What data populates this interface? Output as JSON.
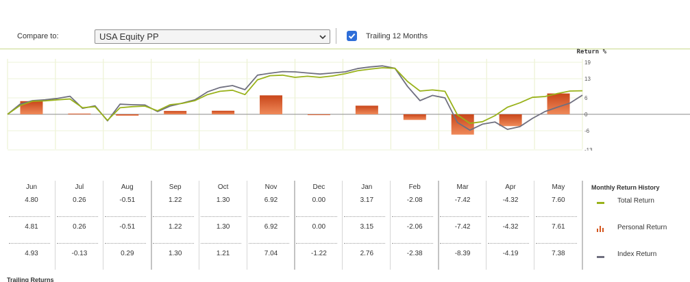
{
  "toolbar": {
    "compare_label": "Compare to:",
    "compare_value": "USA Equity PP",
    "trailing_label": "Trailing 12 Months",
    "trailing_checked": true
  },
  "chart_data": {
    "type": "line",
    "y_axis_title": "Return %",
    "yticks": [
      19,
      13,
      6,
      0,
      -6,
      -13
    ],
    "ylim": [
      -13,
      19
    ],
    "months": [
      "Jun",
      "Jul",
      "Aug",
      "Sep",
      "Oct",
      "Nov",
      "Dec",
      "Jan",
      "Feb",
      "Mar",
      "Apr",
      "May"
    ],
    "bars": {
      "name": "Personal Return",
      "color": "#d4561e",
      "values": [
        4.81,
        0.26,
        -0.51,
        1.22,
        1.3,
        6.92,
        0.0,
        3.15,
        -2.06,
        -7.42,
        -4.32,
        7.61
      ]
    },
    "series": [
      {
        "name": "Total Return",
        "color": "#99b21a",
        "values": [
          0,
          3.2,
          4.8,
          4.9,
          5.3,
          5.6,
          2.4,
          2.8,
          -2.2,
          2.4,
          2.8,
          3.0,
          1.3,
          3.5,
          4.0,
          5.0,
          7.2,
          8.4,
          8.8,
          7.2,
          12.6,
          14.1,
          14.3,
          13.5,
          13.9,
          13.5,
          14.0,
          14.8,
          15.9,
          16.5,
          17.0,
          16.8,
          12.0,
          8.5,
          8.9,
          8.4,
          -0.2,
          -3.3,
          -2.7,
          -0.5,
          2.6,
          4.2,
          6.2,
          6.5,
          7.6,
          8.5,
          8.6
        ]
      },
      {
        "name": "Index Return",
        "color": "#6f6f7f",
        "values": [
          0,
          3.7,
          5.0,
          5.3,
          5.8,
          6.6,
          2.2,
          3.1,
          -2.4,
          3.7,
          3.5,
          3.4,
          1.0,
          3.0,
          4.1,
          5.3,
          8.2,
          9.8,
          10.5,
          9.0,
          14.3,
          15.0,
          15.6,
          15.5,
          15.1,
          14.7,
          15.1,
          15.5,
          16.7,
          17.3,
          17.7,
          16.8,
          10.2,
          5.0,
          6.9,
          6.0,
          -3.0,
          -5.8,
          -3.6,
          -2.8,
          -5.5,
          -4.5,
          -1.5,
          1.0,
          2.6,
          4.1,
          7.0
        ]
      }
    ],
    "legend": "right"
  },
  "table": {
    "months": [
      "Jun",
      "Jul",
      "Aug",
      "Sep",
      "Oct",
      "Nov",
      "Dec",
      "Jan",
      "Feb",
      "Mar",
      "Apr",
      "May"
    ],
    "total": [
      "4.80",
      "0.26",
      "-0.51",
      "1.22",
      "1.30",
      "6.92",
      "0.00",
      "3.17",
      "-2.08",
      "-7.42",
      "-4.32",
      "7.60"
    ],
    "personal": [
      "4.81",
      "0.26",
      "-0.51",
      "1.22",
      "1.30",
      "6.92",
      "0.00",
      "3.15",
      "-2.06",
      "-7.42",
      "-4.32",
      "7.61"
    ],
    "index": [
      "4.93",
      "-0.13",
      "0.29",
      "1.30",
      "1.21",
      "7.04",
      "-1.22",
      "2.76",
      "-2.38",
      "-8.39",
      "-4.19",
      "7.38"
    ]
  },
  "legend": {
    "title": "Monthly Return History",
    "total": "Total Return",
    "personal": "Personal Return",
    "index": "Index Return"
  },
  "footer": {
    "label": "Trailing Returns"
  }
}
